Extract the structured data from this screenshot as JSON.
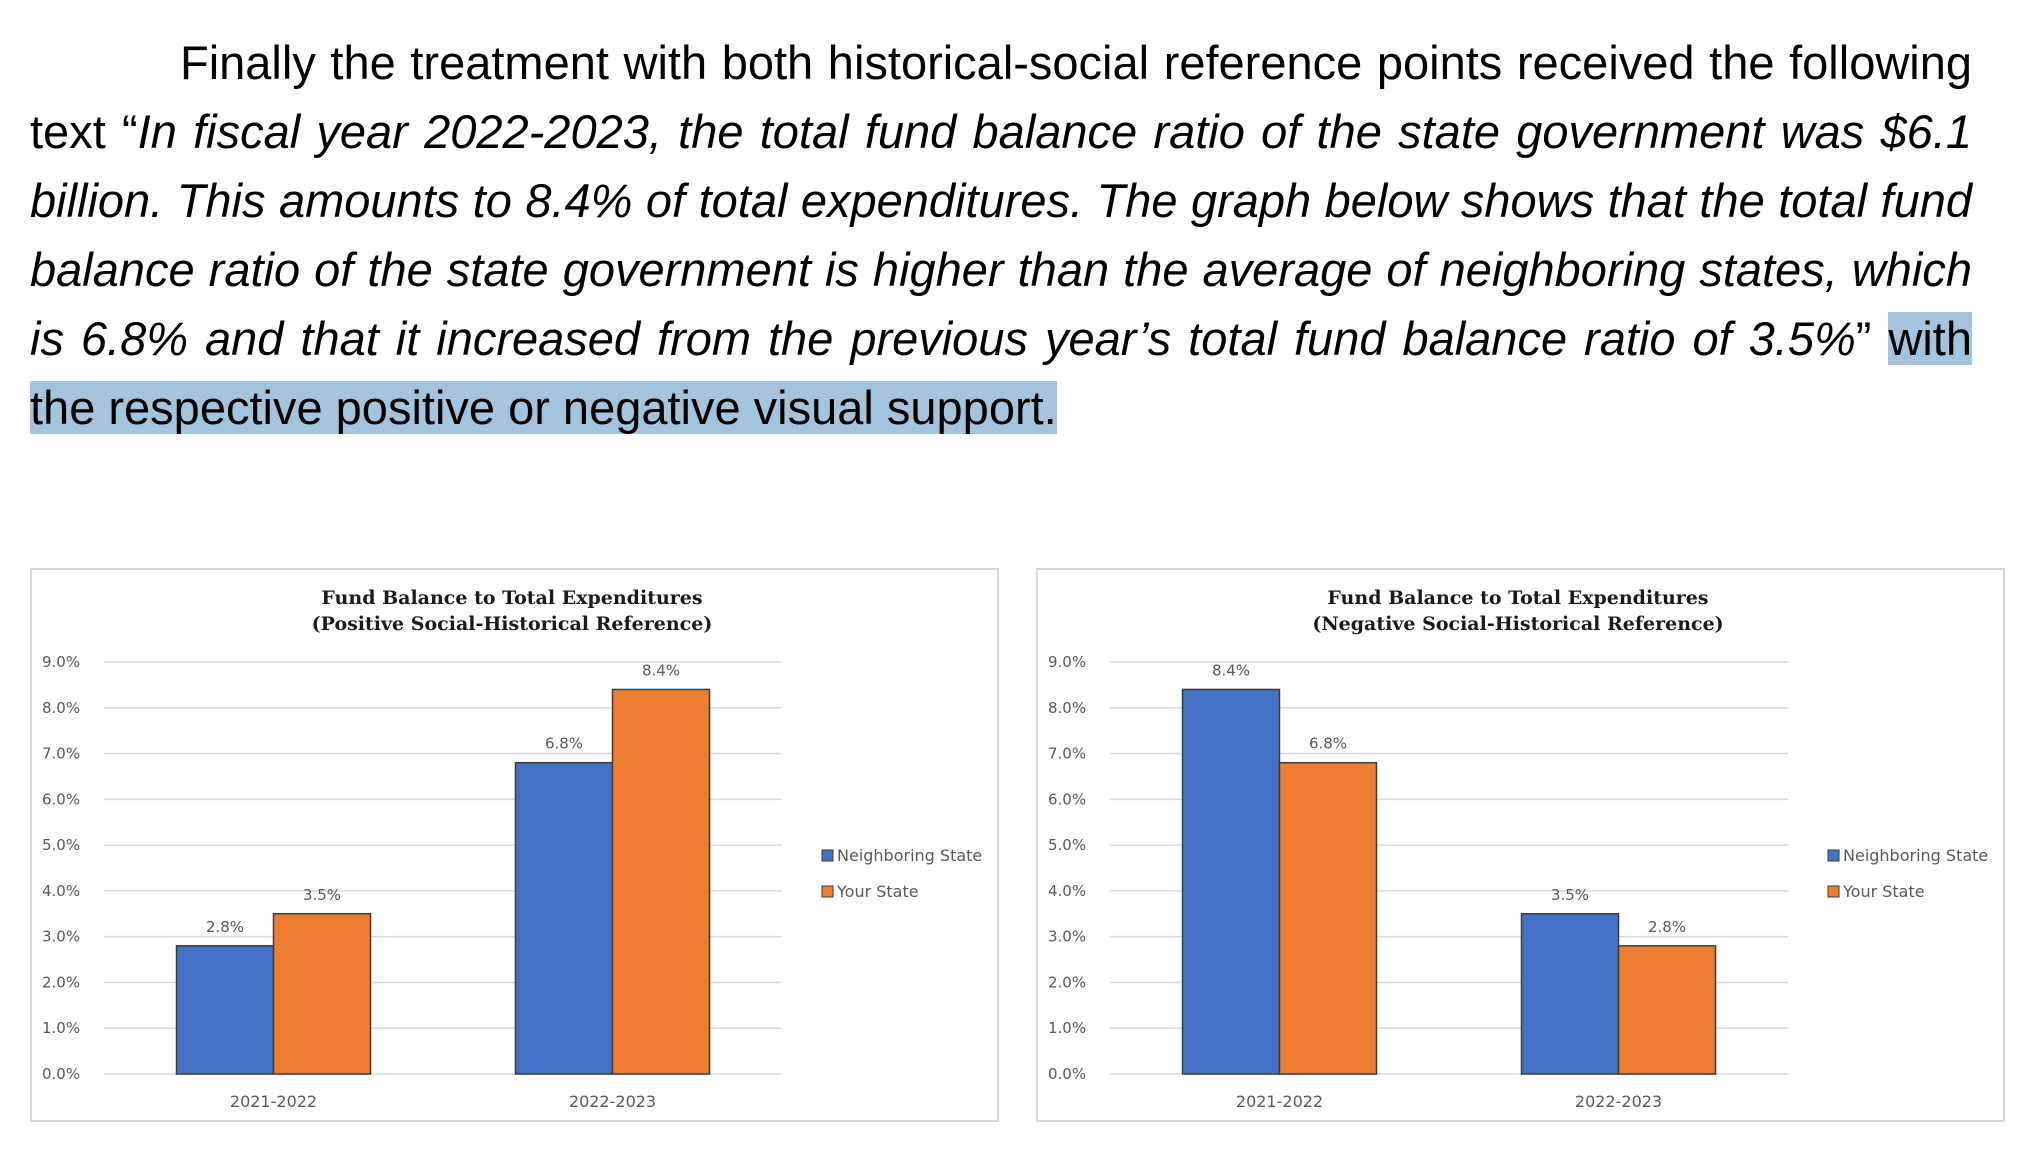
{
  "paragraph": {
    "intro": "Finally the treatment with both historical-social reference points received the following text “",
    "quote": "In fiscal year 2022-2023, the total fund balance ratio of the state government was $6.1 billion. This amounts to 8.4% of total expenditures. The graph below shows that the total fund balance ratio of the state government is higher than the average of neighboring states, which is 6.8% and that it increased from the previous year’s total fund balance ratio of 3.5%",
    "close_quote": "” ",
    "highlight": "with the respective positive or negative visual support."
  },
  "colors": {
    "neighboring": "#4472c4",
    "your_state": "#ed7d31",
    "grid": "#d9d9d9",
    "highlight": "#a3c4dc"
  },
  "chart_data": [
    {
      "type": "bar",
      "title": "Fund Balance to Total Expenditures",
      "subtitle": "(Positive Social-Historical Reference)",
      "categories": [
        "2021-2022",
        "2022-2023"
      ],
      "series": [
        {
          "name": "Neighboring State",
          "values": [
            2.8,
            6.8
          ],
          "labels": [
            "2.8%",
            "6.8%"
          ]
        },
        {
          "name": "Your State",
          "values": [
            3.5,
            8.4
          ],
          "labels": [
            "3.5%",
            "8.4%"
          ]
        }
      ],
      "ylim": [
        0,
        9
      ],
      "yticks": [
        "0.0%",
        "1.0%",
        "2.0%",
        "3.0%",
        "4.0%",
        "5.0%",
        "6.0%",
        "7.0%",
        "8.0%",
        "9.0%"
      ],
      "grid": true,
      "legend": "right"
    },
    {
      "type": "bar",
      "title": "Fund Balance to Total Expenditures",
      "subtitle": "(Negative Social-Historical Reference)",
      "categories": [
        "2021-2022",
        "2022-2023"
      ],
      "series": [
        {
          "name": "Neighboring State",
          "values": [
            8.4,
            3.5
          ],
          "labels": [
            "8.4%",
            "3.5%"
          ]
        },
        {
          "name": "Your State",
          "values": [
            6.8,
            2.8
          ],
          "labels": [
            "6.8%",
            "2.8%"
          ]
        }
      ],
      "ylim": [
        0,
        9
      ],
      "yticks": [
        "0.0%",
        "1.0%",
        "2.0%",
        "3.0%",
        "4.0%",
        "5.0%",
        "6.0%",
        "7.0%",
        "8.0%",
        "9.0%"
      ],
      "grid": true,
      "legend": "right"
    }
  ]
}
